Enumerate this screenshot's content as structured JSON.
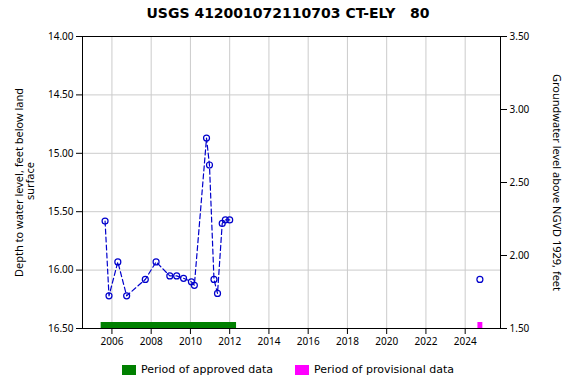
{
  "chart_data": {
    "type": "line",
    "title": "USGS 412001072110703 CT-ELY   80",
    "ylabel": "Depth to water level, feet below land\n surface",
    "y2label": "Groundwater level above NGVD 1929, feet",
    "xlim": [
      2004.5,
      2025.8
    ],
    "xticks": [
      2006,
      2008,
      2010,
      2012,
      2014,
      2016,
      2018,
      2020,
      2022,
      2024
    ],
    "ylim": [
      16.5,
      14.0
    ],
    "yticks": [
      {
        "value": 14.0,
        "label": "14.00"
      },
      {
        "value": 14.5,
        "label": "14.50"
      },
      {
        "value": 15.0,
        "label": "15.00"
      },
      {
        "value": 15.5,
        "label": "15.50"
      },
      {
        "value": 16.0,
        "label": "16.00"
      },
      {
        "value": 16.5,
        "label": "16.50"
      }
    ],
    "y2lim": [
      1.5,
      3.5
    ],
    "y2ticks": [
      {
        "value": 1.5,
        "label": "1.50"
      },
      {
        "value": 2.0,
        "label": "2.00"
      },
      {
        "value": 2.5,
        "label": "2.50"
      },
      {
        "value": 3.0,
        "label": "3.00"
      },
      {
        "value": 3.5,
        "label": "3.50"
      }
    ],
    "grid": true,
    "legend": "bottom",
    "series": [
      {
        "x": [
          2005.65,
          2005.85,
          2006.3,
          2006.75,
          2007.7,
          2008.25,
          2008.95,
          2009.3,
          2009.65,
          2010.05,
          2010.2,
          2010.82,
          2010.97,
          2011.2,
          2011.38,
          2011.62,
          2011.78,
          2012.0
        ],
        "values": [
          15.58,
          16.22,
          15.93,
          16.22,
          16.08,
          15.93,
          16.05,
          16.05,
          16.07,
          16.1,
          16.13,
          14.87,
          15.1,
          16.08,
          16.2,
          15.6,
          15.57,
          15.57
        ],
        "color": "#0000cc",
        "marker": "circle",
        "line_style": "dashed"
      },
      {
        "x": [
          2024.75
        ],
        "values": [
          16.08
        ],
        "color": "#0000cc",
        "marker": "circle",
        "line_style": "none"
      }
    ],
    "periods": [
      {
        "name": "Period of approved data",
        "start": 2005.45,
        "end": 2012.35,
        "color": "#008000"
      },
      {
        "name": "Period of provisional data",
        "start": 2024.65,
        "end": 2024.9,
        "color": "#ff00ff"
      }
    ]
  }
}
